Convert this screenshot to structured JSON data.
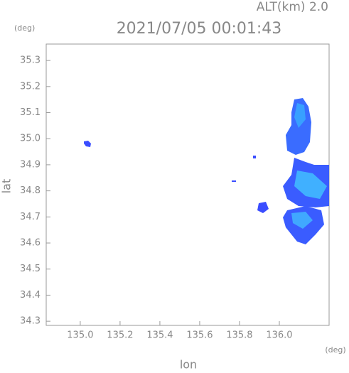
{
  "chart_data": {
    "type": "map",
    "title": "2021/07/05 00:01:43",
    "annotation": "ALT(km) 2.0",
    "x_unit": "(deg)",
    "y_unit": "(deg)",
    "x_label": "lon",
    "y_label": "lat",
    "xlim": [
      134.829,
      136.25
    ],
    "ylim": [
      34.284,
      35.363
    ],
    "xticks": [
      {
        "value": 135,
        "label": "135.0"
      },
      135.2,
      135.4,
      135.6,
      135.8,
      {
        "value": 136,
        "label": "136.0"
      }
    ],
    "yticks": [
      34.3,
      34.4,
      34.5,
      34.6,
      34.7,
      34.8,
      34.9,
      {
        "value": 35,
        "label": "35.0"
      },
      35.1,
      35.2,
      35.3
    ]
  }
}
